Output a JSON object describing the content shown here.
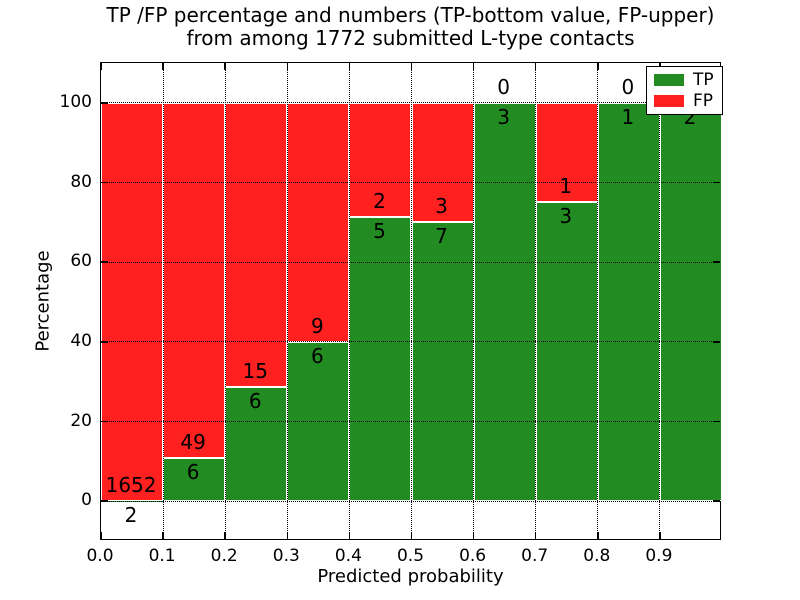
{
  "chart_data": {
    "type": "bar",
    "stacked": true,
    "title_line1": "TP /FP percentage and numbers (TP-bottom value, FP-upper)",
    "title_line2": "from among 1772 submitted L-type contacts",
    "xlabel": "Predicted probability",
    "ylabel": "Percentage",
    "total_contacts": 1772,
    "xlim": [
      0.0,
      1.0
    ],
    "ylim": [
      -10,
      110
    ],
    "grid": "dotted",
    "bar_edge_color": "#ffffff",
    "x_tick_values": [
      0.0,
      0.1,
      0.2,
      0.3,
      0.4,
      0.5,
      0.6,
      0.7,
      0.8,
      0.9
    ],
    "x_tick_labels": [
      "0.0",
      "0.1",
      "0.2",
      "0.3",
      "0.4",
      "0.5",
      "0.6",
      "0.7",
      "0.8",
      "0.9"
    ],
    "y_tick_values": [
      0,
      20,
      40,
      60,
      80,
      100
    ],
    "y_tick_labels": [
      "0",
      "20",
      "40",
      "60",
      "80",
      "100"
    ],
    "bin_width": 0.1,
    "bins": [
      {
        "range": "0.0-0.1",
        "tp": 2,
        "fp": 1652,
        "tp_percent": 0.12
      },
      {
        "range": "0.1-0.2",
        "tp": 6,
        "fp": 49,
        "tp_percent": 10.91
      },
      {
        "range": "0.2-0.3",
        "tp": 6,
        "fp": 15,
        "tp_percent": 28.57
      },
      {
        "range": "0.3-0.4",
        "tp": 6,
        "fp": 9,
        "tp_percent": 40.0
      },
      {
        "range": "0.4-0.5",
        "tp": 5,
        "fp": 2,
        "tp_percent": 71.43
      },
      {
        "range": "0.5-0.6",
        "tp": 7,
        "fp": 3,
        "tp_percent": 70.0
      },
      {
        "range": "0.6-0.7",
        "tp": 3,
        "fp": 0,
        "tp_percent": 100.0
      },
      {
        "range": "0.7-0.8",
        "tp": 3,
        "fp": 1,
        "tp_percent": 75.0
      },
      {
        "range": "0.8-0.9",
        "tp": 1,
        "fp": 0,
        "tp_percent": 100.0
      },
      {
        "range": "0.9-1.0",
        "tp": 2,
        "fp": 0,
        "tp_percent": 100.0
      }
    ],
    "series": [
      {
        "name": "TP",
        "color": "#228b22"
      },
      {
        "name": "FP",
        "color": "#ff2020"
      }
    ],
    "legend": {
      "position": "upper right",
      "entries": [
        {
          "label": "TP",
          "color": "#228b22"
        },
        {
          "label": "FP",
          "color": "#ff2020"
        }
      ]
    }
  }
}
